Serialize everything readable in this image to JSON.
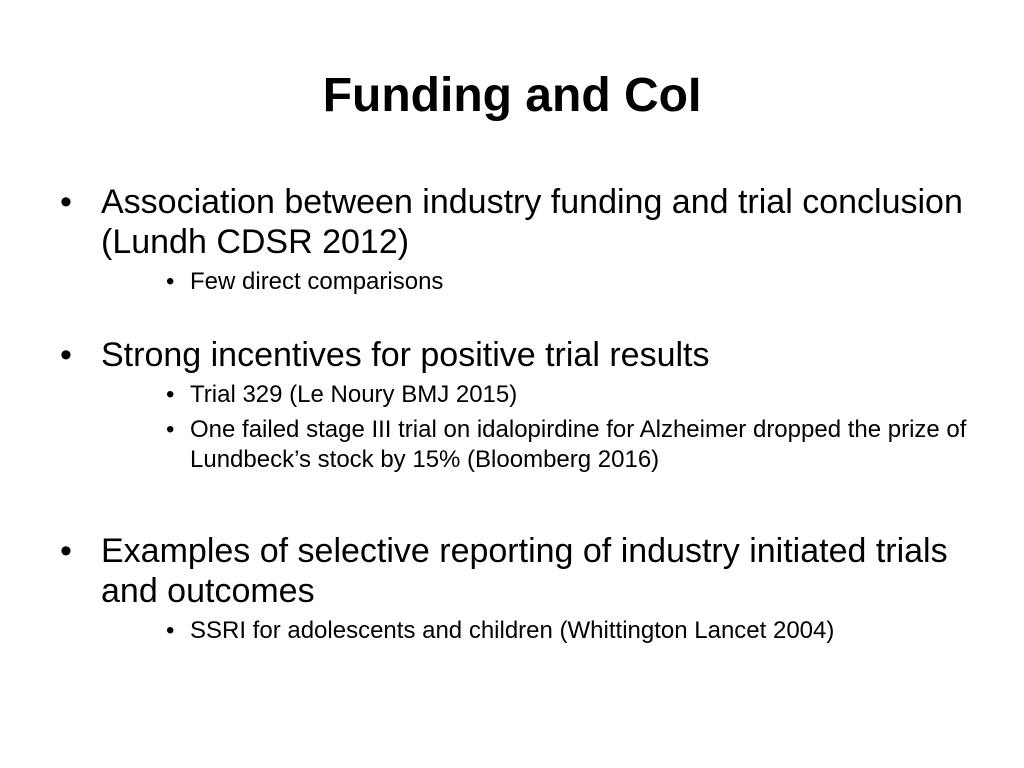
{
  "slide": {
    "title": "Funding and CoI",
    "bullet_glyph": "•",
    "items": [
      {
        "text": "Association between industry funding and trial conclusion (Lundh CDSR 2012)",
        "sub": [
          "Few direct comparisons"
        ]
      },
      {
        "text": "Strong incentives for positive trial results",
        "sub": [
          "Trial 329 (Le Noury BMJ 2015)",
          "One failed stage III trial on idalopirdine for Alzheimer dropped the prize of Lundbeck’s stock by 15% (Bloomberg 2016)"
        ]
      },
      {
        "text": "Examples of selective reporting of industry initiated trials and outcomes",
        "sub": [
          "SSRI for adolescents and children (Whittington Lancet 2004)"
        ]
      }
    ]
  }
}
